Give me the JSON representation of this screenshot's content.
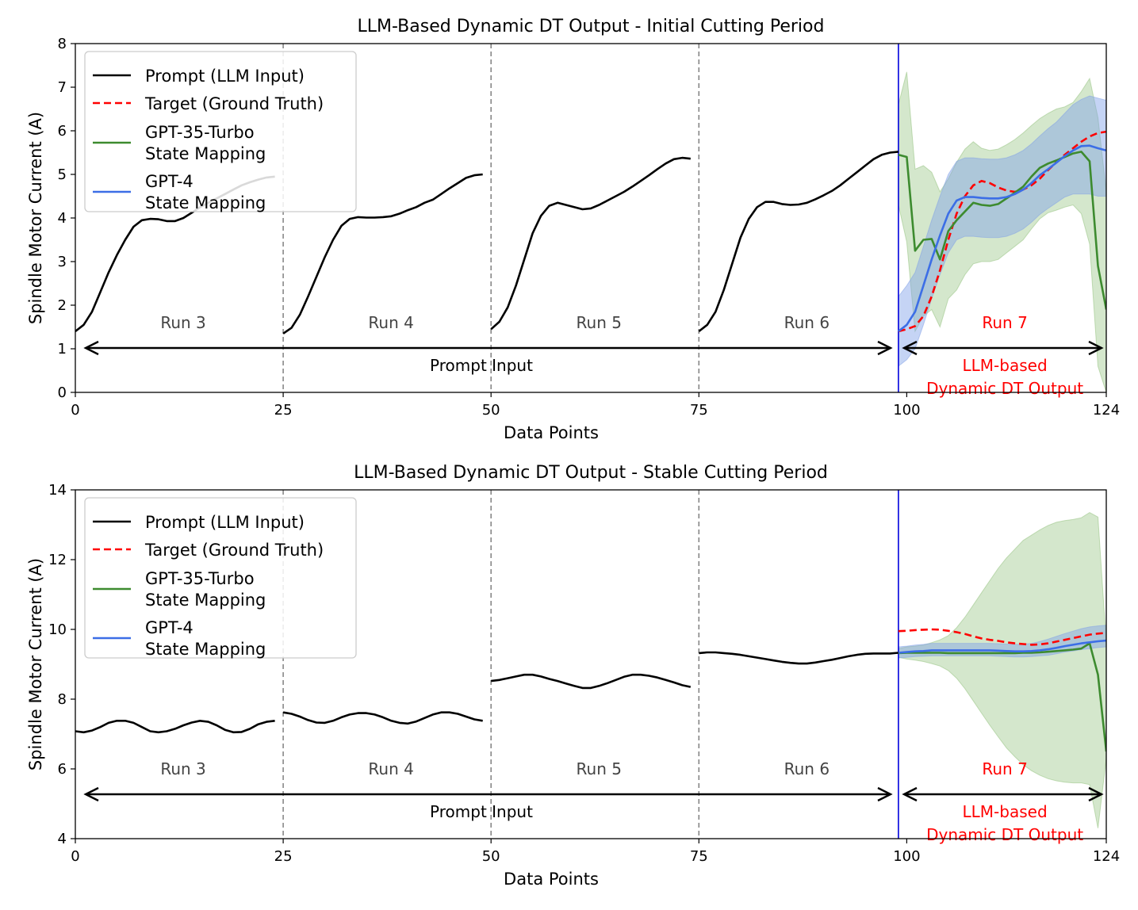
{
  "colors": {
    "prompt": "#000000",
    "target": "#ff0000",
    "gpt35": "#3d8b2f",
    "gpt35_band": "#8fc07a",
    "gpt4": "#3c6ee6",
    "gpt4_band": "#7f9fe8",
    "divider": "#808080",
    "cutoff": "#0000dd",
    "annotation_red": "#ff0000",
    "annotation_gray": "#444444"
  },
  "legend": {
    "prompt": "Prompt (LLM Input)",
    "target": "Target (Ground Truth)",
    "gpt35_line1": "GPT-35-Turbo",
    "gpt35_line2": "State Mapping",
    "gpt4_line1": "GPT-4",
    "gpt4_line2": "State Mapping"
  },
  "annotations": {
    "runs": [
      "Run 3",
      "Run 4",
      "Run 5",
      "Run 6"
    ],
    "run7": "Run 7",
    "prompt_input": "Prompt Input",
    "output_line1": "LLM-based",
    "output_line2": "Dynamic DT Output"
  },
  "chart_data": [
    {
      "type": "line",
      "title": "LLM-Based Dynamic DT Output - Initial Cutting Period",
      "xlabel": "Data Points",
      "ylabel": "Spindle Motor Current (A)",
      "xlim": [
        0,
        124
      ],
      "ylim": [
        0,
        8
      ],
      "xticks": [
        0,
        25,
        50,
        75,
        100,
        124
      ],
      "yticks": [
        0,
        1,
        2,
        3,
        4,
        5,
        6,
        7,
        8
      ],
      "dividers": [
        25,
        50,
        75
      ],
      "cutoff": 99,
      "prompt_segments": [
        {
          "x": [
            0,
            1,
            2,
            3,
            4,
            5,
            6,
            7,
            8,
            9,
            10,
            11,
            12,
            13,
            14,
            15,
            16,
            17,
            18,
            19,
            20,
            21,
            22,
            23,
            24
          ],
          "y": [
            1.4,
            1.55,
            1.85,
            2.3,
            2.75,
            3.15,
            3.5,
            3.8,
            3.95,
            3.98,
            3.97,
            3.93,
            3.93,
            4.0,
            4.12,
            4.25,
            4.35,
            4.45,
            4.55,
            4.65,
            4.75,
            4.82,
            4.88,
            4.93,
            4.95
          ]
        },
        {
          "x": [
            25,
            26,
            27,
            28,
            29,
            30,
            31,
            32,
            33,
            34,
            35,
            36,
            37,
            38,
            39,
            40,
            41,
            42,
            43,
            44,
            45,
            46,
            47,
            48,
            49
          ],
          "y": [
            1.35,
            1.48,
            1.78,
            2.2,
            2.65,
            3.1,
            3.5,
            3.82,
            3.98,
            4.02,
            4.01,
            4.01,
            4.02,
            4.04,
            4.1,
            4.18,
            4.25,
            4.35,
            4.42,
            4.55,
            4.68,
            4.8,
            4.92,
            4.98,
            5.0
          ]
        },
        {
          "x": [
            50,
            51,
            52,
            53,
            54,
            55,
            56,
            57,
            58,
            59,
            60,
            61,
            62,
            63,
            64,
            65,
            66,
            67,
            68,
            69,
            70,
            71,
            72,
            73,
            74
          ],
          "y": [
            1.45,
            1.62,
            1.95,
            2.45,
            3.05,
            3.65,
            4.05,
            4.28,
            4.35,
            4.3,
            4.25,
            4.2,
            4.22,
            4.3,
            4.4,
            4.5,
            4.6,
            4.72,
            4.85,
            4.98,
            5.12,
            5.25,
            5.35,
            5.38,
            5.36
          ]
        },
        {
          "x": [
            75,
            76,
            77,
            78,
            79,
            80,
            81,
            82,
            83,
            84,
            85,
            86,
            87,
            88,
            89,
            90,
            91,
            92,
            93,
            94,
            95,
            96,
            97,
            98,
            99
          ],
          "y": [
            1.4,
            1.55,
            1.85,
            2.35,
            2.95,
            3.55,
            3.98,
            4.25,
            4.37,
            4.37,
            4.32,
            4.3,
            4.31,
            4.35,
            4.43,
            4.52,
            4.62,
            4.75,
            4.9,
            5.05,
            5.2,
            5.35,
            5.45,
            5.5,
            5.52
          ]
        }
      ],
      "target": {
        "x": [
          99,
          100,
          101,
          102,
          103,
          104,
          105,
          106,
          107,
          108,
          109,
          110,
          111,
          112,
          113,
          114,
          115,
          116,
          117,
          118,
          119,
          120,
          121,
          122,
          123,
          124
        ],
        "y": [
          1.4,
          1.45,
          1.52,
          1.75,
          2.2,
          2.8,
          3.5,
          4.1,
          4.5,
          4.75,
          4.85,
          4.8,
          4.7,
          4.63,
          4.6,
          4.65,
          4.75,
          4.9,
          5.1,
          5.28,
          5.45,
          5.6,
          5.75,
          5.87,
          5.95,
          5.98
        ]
      },
      "gpt35": {
        "x": [
          99,
          100,
          101,
          102,
          103,
          104,
          105,
          106,
          107,
          108,
          109,
          110,
          111,
          112,
          113,
          114,
          115,
          116,
          117,
          118,
          119,
          120,
          121,
          122,
          123,
          124
        ],
        "y": [
          5.45,
          5.4,
          3.25,
          3.5,
          3.52,
          3.05,
          3.7,
          3.95,
          4.15,
          4.35,
          4.3,
          4.28,
          4.32,
          4.45,
          4.58,
          4.72,
          4.95,
          5.15,
          5.25,
          5.32,
          5.4,
          5.48,
          5.52,
          5.3,
          2.9,
          1.9
        ],
        "upper": [
          6.6,
          7.35,
          5.12,
          5.2,
          5.05,
          4.6,
          4.9,
          5.28,
          5.58,
          5.75,
          5.6,
          5.55,
          5.58,
          5.68,
          5.8,
          5.95,
          6.12,
          6.28,
          6.4,
          6.5,
          6.55,
          6.65,
          6.9,
          7.2,
          6.3,
          4.6
        ],
        "lower": [
          4.3,
          3.45,
          1.4,
          1.75,
          1.9,
          1.5,
          2.15,
          2.35,
          2.7,
          2.95,
          3.0,
          3.0,
          3.05,
          3.2,
          3.35,
          3.5,
          3.75,
          3.98,
          4.12,
          4.18,
          4.25,
          4.3,
          4.1,
          3.4,
          0.6,
          0.0
        ]
      },
      "gpt4": {
        "x": [
          99,
          100,
          101,
          102,
          103,
          104,
          105,
          106,
          107,
          108,
          109,
          110,
          111,
          112,
          113,
          114,
          115,
          116,
          117,
          118,
          119,
          120,
          121,
          122,
          123,
          124
        ],
        "y": [
          1.4,
          1.55,
          1.85,
          2.45,
          3.05,
          3.6,
          4.1,
          4.4,
          4.48,
          4.48,
          4.46,
          4.45,
          4.45,
          4.48,
          4.55,
          4.65,
          4.8,
          4.98,
          5.12,
          5.27,
          5.42,
          5.55,
          5.65,
          5.66,
          5.6,
          5.55
        ],
        "upper": [
          2.2,
          2.45,
          2.75,
          3.35,
          3.95,
          4.5,
          5.0,
          5.3,
          5.38,
          5.38,
          5.36,
          5.35,
          5.35,
          5.38,
          5.45,
          5.55,
          5.7,
          5.88,
          6.05,
          6.2,
          6.4,
          6.6,
          6.72,
          6.8,
          6.75,
          6.7
        ],
        "lower": [
          0.6,
          0.75,
          1.0,
          1.55,
          2.15,
          2.7,
          3.2,
          3.5,
          3.58,
          3.58,
          3.56,
          3.55,
          3.55,
          3.58,
          3.65,
          3.75,
          3.9,
          4.08,
          4.22,
          4.35,
          4.48,
          4.55,
          4.55,
          4.55,
          4.5,
          4.5
        ]
      }
    },
    {
      "type": "line",
      "title": "LLM-Based Dynamic DT Output - Stable Cutting Period",
      "xlabel": "Data Points",
      "ylabel": "Spindle Motor Current (A)",
      "xlim": [
        0,
        124
      ],
      "ylim": [
        4,
        14
      ],
      "xticks": [
        0,
        25,
        50,
        75,
        100,
        124
      ],
      "yticks": [
        4,
        6,
        8,
        10,
        12,
        14
      ],
      "dividers": [
        25,
        50,
        75
      ],
      "cutoff": 99,
      "prompt_segments": [
        {
          "x": [
            0,
            1,
            2,
            3,
            4,
            5,
            6,
            7,
            8,
            9,
            10,
            11,
            12,
            13,
            14,
            15,
            16,
            17,
            18,
            19,
            20,
            21,
            22,
            23,
            24
          ],
          "y": [
            7.08,
            7.05,
            7.1,
            7.2,
            7.32,
            7.38,
            7.38,
            7.32,
            7.2,
            7.08,
            7.05,
            7.08,
            7.15,
            7.25,
            7.33,
            7.38,
            7.35,
            7.25,
            7.12,
            7.05,
            7.06,
            7.15,
            7.28,
            7.35,
            7.38
          ]
        },
        {
          "x": [
            25,
            26,
            27,
            28,
            29,
            30,
            31,
            32,
            33,
            34,
            35,
            36,
            37,
            38,
            39,
            40,
            41,
            42,
            43,
            44,
            45,
            46,
            47,
            48,
            49
          ],
          "y": [
            7.62,
            7.58,
            7.5,
            7.4,
            7.33,
            7.32,
            7.38,
            7.48,
            7.56,
            7.6,
            7.6,
            7.56,
            7.48,
            7.38,
            7.32,
            7.3,
            7.36,
            7.46,
            7.56,
            7.62,
            7.62,
            7.58,
            7.5,
            7.42,
            7.38
          ]
        },
        {
          "x": [
            50,
            51,
            52,
            53,
            54,
            55,
            56,
            57,
            58,
            59,
            60,
            61,
            62,
            63,
            64,
            65,
            66,
            67,
            68,
            69,
            70,
            71,
            72,
            73,
            74
          ],
          "y": [
            8.52,
            8.55,
            8.6,
            8.65,
            8.7,
            8.7,
            8.65,
            8.58,
            8.52,
            8.45,
            8.38,
            8.32,
            8.32,
            8.38,
            8.46,
            8.55,
            8.64,
            8.7,
            8.7,
            8.67,
            8.62,
            8.55,
            8.48,
            8.4,
            8.35
          ]
        },
        {
          "x": [
            75,
            76,
            77,
            78,
            79,
            80,
            81,
            82,
            83,
            84,
            85,
            86,
            87,
            88,
            89,
            90,
            91,
            92,
            93,
            94,
            95,
            96,
            97,
            98,
            99
          ],
          "y": [
            9.32,
            9.34,
            9.34,
            9.32,
            9.3,
            9.27,
            9.23,
            9.19,
            9.15,
            9.11,
            9.07,
            9.04,
            9.02,
            9.02,
            9.05,
            9.09,
            9.13,
            9.18,
            9.23,
            9.27,
            9.3,
            9.31,
            9.31,
            9.31,
            9.33
          ]
        }
      ],
      "target": {
        "x": [
          99,
          100,
          101,
          102,
          103,
          104,
          105,
          106,
          107,
          108,
          109,
          110,
          111,
          112,
          113,
          114,
          115,
          116,
          117,
          118,
          119,
          120,
          121,
          122,
          123,
          124
        ],
        "y": [
          9.95,
          9.96,
          9.98,
          9.99,
          10.0,
          9.99,
          9.96,
          9.92,
          9.87,
          9.8,
          9.74,
          9.7,
          9.67,
          9.63,
          9.6,
          9.58,
          9.56,
          9.57,
          9.6,
          9.65,
          9.7,
          9.75,
          9.8,
          9.85,
          9.88,
          9.9
        ]
      },
      "gpt35": {
        "x": [
          99,
          100,
          101,
          102,
          103,
          104,
          105,
          106,
          107,
          108,
          109,
          110,
          111,
          112,
          113,
          114,
          115,
          116,
          117,
          118,
          119,
          120,
          121,
          122,
          123,
          124
        ],
        "y": [
          9.32,
          9.33,
          9.33,
          9.33,
          9.33,
          9.33,
          9.32,
          9.32,
          9.32,
          9.32,
          9.32,
          9.32,
          9.32,
          9.32,
          9.32,
          9.33,
          9.33,
          9.34,
          9.36,
          9.38,
          9.4,
          9.42,
          9.45,
          9.6,
          8.7,
          6.5
        ],
        "upper": [
          9.45,
          9.5,
          9.52,
          9.55,
          9.62,
          9.7,
          9.82,
          10.05,
          10.35,
          10.7,
          11.05,
          11.4,
          11.75,
          12.05,
          12.3,
          12.55,
          12.7,
          12.85,
          12.98,
          13.07,
          13.12,
          13.15,
          13.2,
          13.35,
          13.22,
          9.6
        ],
        "lower": [
          9.2,
          9.15,
          9.12,
          9.08,
          9.02,
          8.95,
          8.82,
          8.6,
          8.3,
          7.95,
          7.6,
          7.25,
          6.92,
          6.6,
          6.35,
          6.12,
          5.95,
          5.82,
          5.72,
          5.66,
          5.62,
          5.6,
          5.6,
          5.55,
          4.3,
          6.3
        ]
      },
      "gpt4": {
        "x": [
          99,
          100,
          101,
          102,
          103,
          104,
          105,
          106,
          107,
          108,
          109,
          110,
          111,
          112,
          113,
          114,
          115,
          116,
          117,
          118,
          119,
          120,
          121,
          122,
          123,
          124
        ],
        "y": [
          9.33,
          9.35,
          9.37,
          9.38,
          9.4,
          9.4,
          9.4,
          9.4,
          9.4,
          9.4,
          9.4,
          9.4,
          9.39,
          9.38,
          9.37,
          9.37,
          9.38,
          9.4,
          9.43,
          9.47,
          9.52,
          9.56,
          9.6,
          9.63,
          9.66,
          9.68
        ],
        "upper": [
          9.5,
          9.52,
          9.55,
          9.57,
          9.6,
          9.6,
          9.6,
          9.6,
          9.6,
          9.6,
          9.6,
          9.6,
          9.59,
          9.58,
          9.57,
          9.57,
          9.6,
          9.65,
          9.72,
          9.8,
          9.88,
          9.95,
          10.02,
          10.07,
          10.1,
          10.12
        ],
        "lower": [
          9.18,
          9.2,
          9.22,
          9.23,
          9.24,
          9.24,
          9.24,
          9.24,
          9.24,
          9.24,
          9.24,
          9.24,
          9.23,
          9.22,
          9.21,
          9.21,
          9.22,
          9.24,
          9.26,
          9.3,
          9.35,
          9.38,
          9.42,
          9.45,
          9.48,
          9.5
        ]
      }
    }
  ]
}
